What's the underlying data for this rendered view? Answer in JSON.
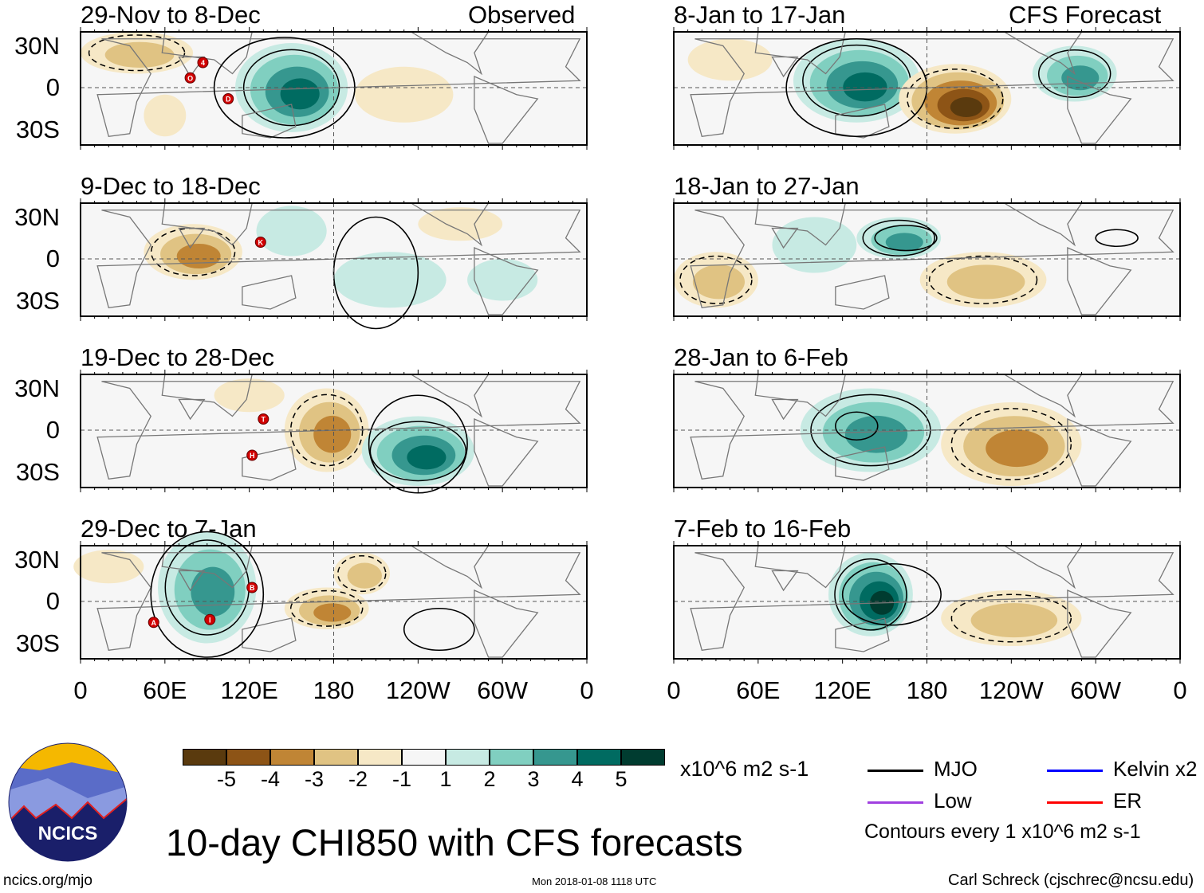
{
  "title": "10-day CHI850 with CFS forecasts",
  "units": "x10^6 m2 s-1",
  "website": "ncics.org/mjo",
  "timestamp": "Mon 2018-01-08 1118 UTC",
  "author": "Carl Schreck (cjschrec@ncsu.edu)",
  "logo_text": "NCICS",
  "observed_label": "Observed",
  "forecast_label": "CFS Forecast",
  "contour_note": "Contours every 1 x10^6 m2 s-1",
  "legend": [
    {
      "label": "MJO",
      "color": "#000000"
    },
    {
      "label": "Kelvin x2",
      "color": "#0000ff"
    },
    {
      "label": "Low",
      "color": "#a040e0"
    },
    {
      "label": "ER",
      "color": "#ff0000"
    }
  ],
  "lat_labels": [
    "30N",
    "0",
    "30S"
  ],
  "lon_labels": [
    "0",
    "60E",
    "120E",
    "180",
    "120W",
    "60W",
    "0"
  ],
  "colorbar": {
    "colors": [
      "#5a3a0e",
      "#8d5416",
      "#c08535",
      "#e0c383",
      "#f6e8c6",
      "#f6f6f6",
      "#c7eae3",
      "#80cfc0",
      "#36978f",
      "#006b61",
      "#003c30"
    ],
    "labels": [
      "-5",
      "-4",
      "-3",
      "-2",
      "-1",
      "1",
      "2",
      "3",
      "4",
      "5"
    ]
  },
  "chart_data": {
    "type": "heatmap",
    "variable": "CHI850 anomaly",
    "lon_range": [
      0,
      360
    ],
    "lat_range": [
      -40,
      40
    ],
    "panels": [
      {
        "title": "29-Dec to 7-Jan",
        "title_alt": "",
        "source": "observed",
        "features": []
      },
      {
        "title": "29-Nov to 8-Dec",
        "source": "observed",
        "features": [
          {
            "lon": 150,
            "lat": 0,
            "rlon": 40,
            "rlat": 32,
            "level": 4
          },
          {
            "lon": 40,
            "lat": 25,
            "rlon": 40,
            "rlat": 15,
            "level": -2
          },
          {
            "lon": 230,
            "lat": -5,
            "rlon": 35,
            "rlat": 20,
            "level": -1
          },
          {
            "lon": 60,
            "lat": -20,
            "rlon": 15,
            "rlat": 15,
            "level": -1
          }
        ],
        "mjo": [
          {
            "lon": 145,
            "lat": 0,
            "rlon": 50,
            "rlat": 36
          }
        ],
        "storms": [
          {
            "id": "4",
            "lon": 87,
            "lat": 18
          },
          {
            "id": "O",
            "lon": 78,
            "lat": 7
          },
          {
            "id": "D",
            "lon": 105,
            "lat": -8
          }
        ]
      },
      {
        "title": "9-Dec to 18-Dec",
        "source": "observed",
        "features": [
          {
            "lon": 80,
            "lat": 5,
            "rlon": 35,
            "rlat": 20,
            "level": -3
          },
          {
            "lon": 150,
            "lat": 20,
            "rlon": 25,
            "rlat": 18,
            "level": 1
          },
          {
            "lon": 220,
            "lat": -15,
            "rlon": 40,
            "rlat": 20,
            "level": 1
          },
          {
            "lon": 300,
            "lat": -15,
            "rlon": 25,
            "rlat": 15,
            "level": 1
          },
          {
            "lon": 270,
            "lat": 25,
            "rlon": 30,
            "rlat": 12,
            "level": -1
          }
        ],
        "mjo": [
          {
            "lon": 210,
            "lat": -10,
            "rlon": 30,
            "rlat": 40
          }
        ],
        "storms": [
          {
            "id": "K",
            "lon": 128,
            "lat": 12
          }
        ]
      },
      {
        "title": "19-Dec to 28-Dec",
        "source": "observed",
        "features": [
          {
            "lon": 175,
            "lat": 0,
            "rlon": 30,
            "rlat": 30,
            "level": -3
          },
          {
            "lon": 240,
            "lat": -15,
            "rlon": 40,
            "rlat": 25,
            "level": 4
          },
          {
            "lon": 120,
            "lat": 25,
            "rlon": 25,
            "rlat": 12,
            "level": -1
          }
        ],
        "mjo": [
          {
            "lon": 240,
            "lat": -10,
            "rlon": 35,
            "rlat": 35
          }
        ],
        "storms": [
          {
            "id": "T",
            "lon": 130,
            "lat": 8
          },
          {
            "id": "H",
            "lon": 122,
            "lat": -18
          }
        ]
      },
      {
        "title": "29-Dec to 7-Jan",
        "source": "observed",
        "features": [
          {
            "lon": 90,
            "lat": 10,
            "rlon": 35,
            "rlat": 40,
            "level": 3
          },
          {
            "lon": 175,
            "lat": -5,
            "rlon": 30,
            "rlat": 15,
            "level": -3
          },
          {
            "lon": 200,
            "lat": 20,
            "rlon": 20,
            "rlat": 15,
            "level": -2
          },
          {
            "lon": 20,
            "lat": 25,
            "rlon": 25,
            "rlat": 12,
            "level": -1
          }
        ],
        "mjo": [
          {
            "lon": 90,
            "lat": 5,
            "rlon": 40,
            "rlat": 45
          },
          {
            "lon": 255,
            "lat": -20,
            "rlon": 25,
            "rlat": 15
          }
        ],
        "storms": [
          {
            "id": "B",
            "lon": 122,
            "lat": 10
          },
          {
            "id": "A",
            "lon": 52,
            "lat": -15
          },
          {
            "id": "I",
            "lon": 92,
            "lat": -13
          }
        ]
      },
      {
        "title": "8-Jan to 17-Jan",
        "source": "forecast",
        "features": [
          {
            "lon": 130,
            "lat": 5,
            "rlon": 45,
            "rlat": 30,
            "level": 4
          },
          {
            "lon": 200,
            "lat": -8,
            "rlon": 40,
            "rlat": 25,
            "level": -5
          },
          {
            "lon": 285,
            "lat": 10,
            "rlon": 30,
            "rlat": 20,
            "level": 3
          },
          {
            "lon": 40,
            "lat": 20,
            "rlon": 30,
            "rlat": 15,
            "level": -1
          }
        ],
        "mjo": [
          {
            "lon": 130,
            "lat": 0,
            "rlon": 50,
            "rlat": 35
          }
        ],
        "storms": []
      },
      {
        "title": "18-Jan to 27-Jan",
        "source": "forecast",
        "features": [
          {
            "lon": 160,
            "lat": 15,
            "rlon": 30,
            "rlat": 15,
            "level": 3
          },
          {
            "lon": 220,
            "lat": -15,
            "rlon": 45,
            "rlat": 20,
            "level": -2
          },
          {
            "lon": 100,
            "lat": 10,
            "rlon": 30,
            "rlat": 20,
            "level": 1
          },
          {
            "lon": 30,
            "lat": -15,
            "rlon": 30,
            "rlat": 20,
            "level": -2
          }
        ],
        "mjo": [
          {
            "lon": 165,
            "lat": 15,
            "rlon": 22,
            "rlat": 9
          },
          {
            "lon": 315,
            "lat": 15,
            "rlon": 15,
            "rlat": 6
          }
        ],
        "storms": []
      },
      {
        "title": "28-Jan to 6-Feb",
        "source": "forecast",
        "features": [
          {
            "lon": 140,
            "lat": 0,
            "rlon": 50,
            "rlat": 30,
            "level": 3
          },
          {
            "lon": 240,
            "lat": -10,
            "rlon": 50,
            "rlat": 30,
            "level": -3
          }
        ],
        "mjo": [
          {
            "lon": 130,
            "lat": 3,
            "rlon": 15,
            "rlat": 10
          }
        ],
        "storms": []
      },
      {
        "title": "7-Feb to 16-Feb",
        "source": "forecast",
        "features": [
          {
            "lon": 140,
            "lat": 5,
            "rlon": 30,
            "rlat": 30,
            "level": 5
          },
          {
            "lon": 240,
            "lat": -12,
            "rlon": 50,
            "rlat": 20,
            "level": -2
          }
        ],
        "mjo": [
          {
            "lon": 155,
            "lat": 5,
            "rlon": 35,
            "rlat": 22
          }
        ],
        "storms": []
      }
    ]
  }
}
